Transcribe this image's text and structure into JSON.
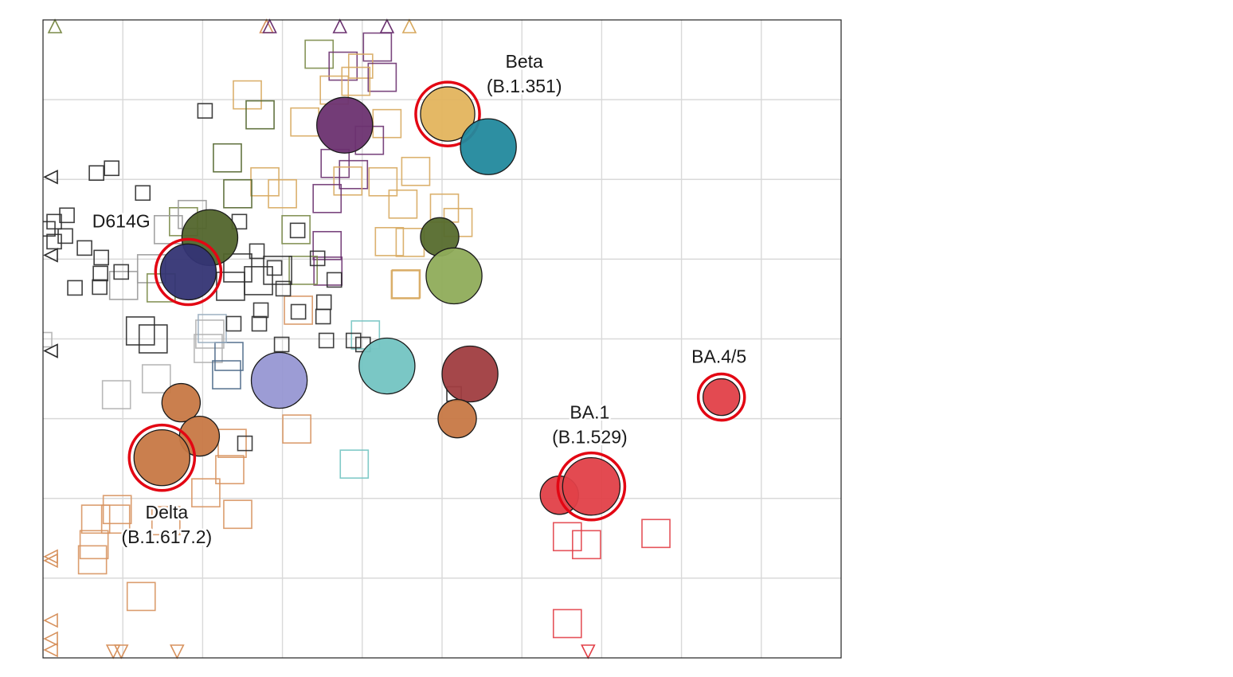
{
  "chart_data": {
    "type": "scatter",
    "title": "",
    "xlabel": "",
    "ylabel": "",
    "xlim": [
      0,
      10
    ],
    "ylim": [
      0,
      8
    ],
    "grid": true,
    "grid_step": 1,
    "grid_color": "#d9d9d9",
    "highlight_color": "#e30613",
    "labels": [
      {
        "lines": [
          "Beta",
          "(B.1.351)"
        ],
        "x": 6.03,
        "y": 7.4
      },
      {
        "lines": [
          "D614G"
        ],
        "x": 0.98,
        "y": 5.4
      },
      {
        "lines": [
          "BA.4/5"
        ],
        "x": 8.47,
        "y": 3.7
      },
      {
        "lines": [
          "BA.1",
          "(B.1.529)"
        ],
        "x": 6.85,
        "y": 3.0
      },
      {
        "lines": [
          "Delta",
          "(B.1.617.2)"
        ],
        "x": 1.55,
        "y": 1.75
      }
    ],
    "antigens": [
      {
        "x": 5.07,
        "y": 6.82,
        "color": "#e3b45d",
        "size": 0.34,
        "highlight": true
      },
      {
        "x": 5.58,
        "y": 6.41,
        "color": "#22899d",
        "size": 0.35
      },
      {
        "x": 3.78,
        "y": 6.68,
        "color": "#6b3270",
        "size": 0.35
      },
      {
        "x": 2.09,
        "y": 5.27,
        "color": "#52652c",
        "size": 0.35
      },
      {
        "x": 1.82,
        "y": 4.84,
        "color": "#343474",
        "size": 0.35,
        "highlight": true
      },
      {
        "x": 2.96,
        "y": 3.48,
        "color": "#9797d3",
        "size": 0.35
      },
      {
        "x": 4.31,
        "y": 3.66,
        "color": "#73c4c2",
        "size": 0.35
      },
      {
        "x": 5.35,
        "y": 3.56,
        "color": "#a03d40",
        "size": 0.35
      },
      {
        "x": 4.97,
        "y": 5.28,
        "color": "#566b2d",
        "size": 0.24
      },
      {
        "x": 5.15,
        "y": 4.79,
        "color": "#8fac5a",
        "size": 0.35
      },
      {
        "x": 1.73,
        "y": 3.2,
        "color": "#c77845",
        "size": 0.24
      },
      {
        "x": 1.96,
        "y": 2.78,
        "color": "#c77845",
        "size": 0.25
      },
      {
        "x": 1.49,
        "y": 2.51,
        "color": "#c77845",
        "size": 0.35,
        "highlight": true
      },
      {
        "x": 5.19,
        "y": 3.0,
        "color": "#c77845",
        "size": 0.24
      },
      {
        "x": 6.47,
        "y": 2.04,
        "color": "#e24048",
        "size": 0.24
      },
      {
        "x": 6.87,
        "y": 2.15,
        "color": "#e24048",
        "size": 0.36,
        "highlight": true
      },
      {
        "x": 8.5,
        "y": 3.27,
        "color": "#e24048",
        "size": 0.23,
        "highlight": true
      }
    ],
    "sera": [
      {
        "x": 3.46,
        "y": 7.57,
        "s": 0.35,
        "color": "#7a8a48"
      },
      {
        "x": 4.19,
        "y": 7.66,
        "s": 0.35,
        "color": "#6b3270"
      },
      {
        "x": 3.76,
        "y": 7.42,
        "s": 0.35,
        "color": "#6b3270"
      },
      {
        "x": 3.98,
        "y": 7.42,
        "s": 0.3,
        "color": "#d7a85e"
      },
      {
        "x": 4.25,
        "y": 7.28,
        "s": 0.35,
        "color": "#6b3270"
      },
      {
        "x": 3.92,
        "y": 7.23,
        "s": 0.35,
        "color": "#d7a85e"
      },
      {
        "x": 3.65,
        "y": 7.12,
        "s": 0.35,
        "color": "#d7a85e"
      },
      {
        "x": 2.56,
        "y": 7.06,
        "s": 0.35,
        "color": "#d7a85e"
      },
      {
        "x": 2.72,
        "y": 6.81,
        "s": 0.35,
        "color": "#52652c"
      },
      {
        "x": 4.31,
        "y": 6.7,
        "s": 0.35,
        "color": "#d7a85e"
      },
      {
        "x": 3.28,
        "y": 6.72,
        "s": 0.35,
        "color": "#d7a85e"
      },
      {
        "x": 4.09,
        "y": 6.49,
        "s": 0.35,
        "color": "#6b3270"
      },
      {
        "x": 2.31,
        "y": 6.27,
        "s": 0.35,
        "color": "#52652c"
      },
      {
        "x": 3.66,
        "y": 6.2,
        "s": 0.35,
        "color": "#6b3270"
      },
      {
        "x": 3.89,
        "y": 6.06,
        "s": 0.35,
        "color": "#6b3270"
      },
      {
        "x": 2.78,
        "y": 5.97,
        "s": 0.35,
        "color": "#d7a85e"
      },
      {
        "x": 3.0,
        "y": 5.82,
        "s": 0.35,
        "color": "#d7a85e"
      },
      {
        "x": 3.82,
        "y": 5.98,
        "s": 0.35,
        "color": "#d7a85e"
      },
      {
        "x": 4.26,
        "y": 5.97,
        "s": 0.35,
        "color": "#d7a85e"
      },
      {
        "x": 4.67,
        "y": 6.1,
        "s": 0.35,
        "color": "#d7a85e"
      },
      {
        "x": 2.44,
        "y": 5.82,
        "s": 0.35,
        "color": "#52652c"
      },
      {
        "x": 3.56,
        "y": 5.76,
        "s": 0.35,
        "color": "#6b3270"
      },
      {
        "x": 4.51,
        "y": 5.69,
        "s": 0.35,
        "color": "#d7a85e"
      },
      {
        "x": 5.03,
        "y": 5.64,
        "s": 0.35,
        "color": "#d7a85e"
      },
      {
        "x": 5.2,
        "y": 5.46,
        "s": 0.35,
        "color": "#d7a85e"
      },
      {
        "x": 4.34,
        "y": 5.22,
        "s": 0.35,
        "color": "#d7a85e"
      },
      {
        "x": 4.6,
        "y": 5.21,
        "s": 0.35,
        "color": "#d7a85e"
      },
      {
        "x": 3.17,
        "y": 5.37,
        "s": 0.35,
        "color": "#7a8a48"
      },
      {
        "x": 3.56,
        "y": 5.17,
        "s": 0.35,
        "color": "#6b3270"
      },
      {
        "x": 3.57,
        "y": 4.85,
        "s": 0.35,
        "color": "#6b3270"
      },
      {
        "x": 3.26,
        "y": 4.86,
        "s": 0.35,
        "color": "#7a8a48"
      },
      {
        "x": 4.55,
        "y": 4.69,
        "s": 0.35,
        "color": "#d7a85e"
      },
      {
        "x": 2.44,
        "y": 4.89,
        "s": 0.35,
        "color": "#2b2b2b"
      },
      {
        "x": 2.7,
        "y": 4.73,
        "s": 0.35,
        "color": "#2b2b2b"
      },
      {
        "x": 2.94,
        "y": 4.86,
        "s": 0.35,
        "color": "#2b2b2b"
      },
      {
        "x": 2.35,
        "y": 4.66,
        "s": 0.35,
        "color": "#2b2b2b"
      },
      {
        "x": 1.76,
        "y": 5.47,
        "s": 0.35,
        "color": "#7a8a48"
      },
      {
        "x": 1.87,
        "y": 5.56,
        "s": 0.35,
        "color": "#999999"
      },
      {
        "x": 1.57,
        "y": 5.37,
        "s": 0.35,
        "color": "#999999"
      },
      {
        "x": 1.36,
        "y": 4.88,
        "s": 0.35,
        "color": "#999999"
      },
      {
        "x": 1.01,
        "y": 4.67,
        "s": 0.35,
        "color": "#999999"
      },
      {
        "x": 1.48,
        "y": 4.64,
        "s": 0.35,
        "color": "#7a8a48"
      },
      {
        "x": 1.22,
        "y": 4.1,
        "s": 0.35,
        "color": "#2b2b2b"
      },
      {
        "x": 1.38,
        "y": 4.0,
        "s": 0.35,
        "color": "#2b2b2b"
      },
      {
        "x": 2.09,
        "y": 4.06,
        "s": 0.35,
        "color": "#b0b0b0"
      },
      {
        "x": 2.07,
        "y": 3.88,
        "s": 0.35,
        "color": "#b0b0b0"
      },
      {
        "x": 2.33,
        "y": 3.78,
        "s": 0.35,
        "color": "#4e6a8a"
      },
      {
        "x": 2.3,
        "y": 3.55,
        "s": 0.35,
        "color": "#4e6a8a"
      },
      {
        "x": 2.12,
        "y": 4.13,
        "s": 0.35,
        "color": "#9aaec0"
      },
      {
        "x": 1.42,
        "y": 3.5,
        "s": 0.35,
        "color": "#b0b0b0"
      },
      {
        "x": 0.92,
        "y": 3.3,
        "s": 0.35,
        "color": "#b0b0b0"
      },
      {
        "x": 4.04,
        "y": 4.05,
        "s": 0.35,
        "color": "#73c4c2"
      },
      {
        "x": 3.9,
        "y": 2.43,
        "s": 0.35,
        "color": "#73c4c2"
      },
      {
        "x": 3.18,
        "y": 2.87,
        "s": 0.35,
        "color": "#d7925e"
      },
      {
        "x": 2.37,
        "y": 2.69,
        "s": 0.35,
        "color": "#d7925e"
      },
      {
        "x": 2.34,
        "y": 2.36,
        "s": 0.35,
        "color": "#d7925e"
      },
      {
        "x": 2.04,
        "y": 2.07,
        "s": 0.35,
        "color": "#d7925e"
      },
      {
        "x": 2.44,
        "y": 1.8,
        "s": 0.35,
        "color": "#d7925e"
      },
      {
        "x": 0.91,
        "y": 1.74,
        "s": 0.35,
        "color": "#d7925e"
      },
      {
        "x": 0.93,
        "y": 1.86,
        "s": 0.35,
        "color": "#d7925e"
      },
      {
        "x": 1.54,
        "y": 1.72,
        "s": 0.35,
        "color": "#d7925e"
      },
      {
        "x": 0.66,
        "y": 1.74,
        "s": 0.35,
        "color": "#d7925e"
      },
      {
        "x": 0.64,
        "y": 1.42,
        "s": 0.35,
        "color": "#d7925e"
      },
      {
        "x": 0.62,
        "y": 1.23,
        "s": 0.35,
        "color": "#d7925e"
      },
      {
        "x": 1.23,
        "y": 0.77,
        "s": 0.35,
        "color": "#d7925e"
      },
      {
        "x": 3.2,
        "y": 4.36,
        "s": 0.35,
        "color": "#d7925e"
      },
      {
        "x": 4.54,
        "y": 4.68,
        "s": 0.35,
        "color": "#d7a85e"
      },
      {
        "x": 6.57,
        "y": 1.52,
        "s": 0.35,
        "color": "#e24048"
      },
      {
        "x": 6.81,
        "y": 1.42,
        "s": 0.35,
        "color": "#e24048"
      },
      {
        "x": 7.68,
        "y": 1.56,
        "s": 0.35,
        "color": "#e24048"
      },
      {
        "x": 6.57,
        "y": 0.43,
        "s": 0.35,
        "color": "#e24048"
      },
      {
        "x": 2.03,
        "y": 6.86,
        "s": 0.18,
        "color": "#2b2b2b"
      },
      {
        "x": 0.67,
        "y": 6.08,
        "s": 0.18,
        "color": "#2b2b2b"
      },
      {
        "x": 0.86,
        "y": 6.14,
        "s": 0.18,
        "color": "#2b2b2b"
      },
      {
        "x": 1.25,
        "y": 5.83,
        "s": 0.18,
        "color": "#2b2b2b"
      },
      {
        "x": 0.3,
        "y": 5.55,
        "s": 0.18,
        "color": "#2b2b2b"
      },
      {
        "x": 0.14,
        "y": 5.47,
        "s": 0.18,
        "color": "#2b2b2b"
      },
      {
        "x": 0.06,
        "y": 5.38,
        "s": 0.18,
        "color": "#2b2b2b"
      },
      {
        "x": 0.28,
        "y": 5.29,
        "s": 0.18,
        "color": "#2b2b2b"
      },
      {
        "x": 0.14,
        "y": 5.22,
        "s": 0.18,
        "color": "#2b2b2b"
      },
      {
        "x": 0.52,
        "y": 5.14,
        "s": 0.18,
        "color": "#2b2b2b"
      },
      {
        "x": 0.73,
        "y": 5.02,
        "s": 0.18,
        "color": "#2b2b2b"
      },
      {
        "x": 0.72,
        "y": 4.82,
        "s": 0.18,
        "color": "#2b2b2b"
      },
      {
        "x": 0.4,
        "y": 4.64,
        "s": 0.18,
        "color": "#2b2b2b"
      },
      {
        "x": 0.98,
        "y": 4.84,
        "s": 0.18,
        "color": "#2b2b2b"
      },
      {
        "x": 2.46,
        "y": 5.47,
        "s": 0.18,
        "color": "#2b2b2b"
      },
      {
        "x": 3.19,
        "y": 5.36,
        "s": 0.18,
        "color": "#2b2b2b"
      },
      {
        "x": 2.68,
        "y": 5.1,
        "s": 0.18,
        "color": "#2b2b2b"
      },
      {
        "x": 2.9,
        "y": 4.89,
        "s": 0.18,
        "color": "#2b2b2b"
      },
      {
        "x": 3.01,
        "y": 4.63,
        "s": 0.18,
        "color": "#2b2b2b"
      },
      {
        "x": 3.44,
        "y": 5.01,
        "s": 0.18,
        "color": "#2b2b2b"
      },
      {
        "x": 3.65,
        "y": 4.74,
        "s": 0.18,
        "color": "#2b2b2b"
      },
      {
        "x": 2.73,
        "y": 4.36,
        "s": 0.18,
        "color": "#2b2b2b"
      },
      {
        "x": 3.52,
        "y": 4.46,
        "s": 0.18,
        "color": "#2b2b2b"
      },
      {
        "x": 3.2,
        "y": 4.34,
        "s": 0.18,
        "color": "#2b2b2b"
      },
      {
        "x": 2.39,
        "y": 4.19,
        "s": 0.18,
        "color": "#2b2b2b"
      },
      {
        "x": 3.51,
        "y": 4.28,
        "s": 0.18,
        "color": "#2b2b2b"
      },
      {
        "x": 3.55,
        "y": 3.98,
        "s": 0.18,
        "color": "#2b2b2b"
      },
      {
        "x": 2.99,
        "y": 3.93,
        "s": 0.18,
        "color": "#2b2b2b"
      },
      {
        "x": 2.71,
        "y": 4.19,
        "s": 0.18,
        "color": "#2b2b2b"
      },
      {
        "x": 3.89,
        "y": 3.98,
        "s": 0.18,
        "color": "#2b2b2b"
      },
      {
        "x": 4.01,
        "y": 3.93,
        "s": 0.18,
        "color": "#2b2b2b"
      },
      {
        "x": 2.53,
        "y": 2.69,
        "s": 0.18,
        "color": "#2b2b2b"
      },
      {
        "x": 5.15,
        "y": 3.31,
        "s": 0.18,
        "color": "#2b2b2b"
      },
      {
        "x": 0.71,
        "y": 4.65,
        "s": 0.18,
        "color": "#2b2b2b"
      },
      {
        "x": 0.02,
        "y": 3.99,
        "s": 0.18,
        "color": "#b0b0b0"
      }
    ],
    "boundary_markers": [
      {
        "x": 0.15,
        "y": 7.92,
        "dir": "up",
        "color": "#7a8a48"
      },
      {
        "x": 2.8,
        "y": 7.92,
        "dir": "up",
        "color": "#d7925e"
      },
      {
        "x": 2.84,
        "y": 7.92,
        "dir": "up",
        "color": "#6b3270"
      },
      {
        "x": 3.72,
        "y": 7.92,
        "dir": "up",
        "color": "#6b3270"
      },
      {
        "x": 4.31,
        "y": 7.92,
        "dir": "up",
        "color": "#6b3270"
      },
      {
        "x": 4.59,
        "y": 7.92,
        "dir": "up",
        "color": "#d7a85e"
      },
      {
        "x": 0.1,
        "y": 6.03,
        "dir": "left",
        "color": "#2b2b2b"
      },
      {
        "x": 0.1,
        "y": 5.05,
        "dir": "left",
        "color": "#2b2b2b"
      },
      {
        "x": 0.1,
        "y": 3.85,
        "dir": "left",
        "color": "#2b2b2b"
      },
      {
        "x": 0.1,
        "y": 1.27,
        "dir": "left",
        "color": "#d7925e"
      },
      {
        "x": 0.1,
        "y": 1.22,
        "dir": "left",
        "color": "#d7925e"
      },
      {
        "x": 0.1,
        "y": 0.47,
        "dir": "left",
        "color": "#d7925e"
      },
      {
        "x": 0.1,
        "y": 0.24,
        "dir": "left",
        "color": "#d7925e"
      },
      {
        "x": 0.1,
        "y": 0.1,
        "dir": "left",
        "color": "#d7925e"
      },
      {
        "x": 0.88,
        "y": 0.08,
        "dir": "down",
        "color": "#d7925e"
      },
      {
        "x": 0.98,
        "y": 0.08,
        "dir": "down",
        "color": "#d7925e"
      },
      {
        "x": 1.68,
        "y": 0.08,
        "dir": "down",
        "color": "#d7925e"
      },
      {
        "x": 6.83,
        "y": 0.08,
        "dir": "down",
        "color": "#e24048"
      }
    ]
  }
}
